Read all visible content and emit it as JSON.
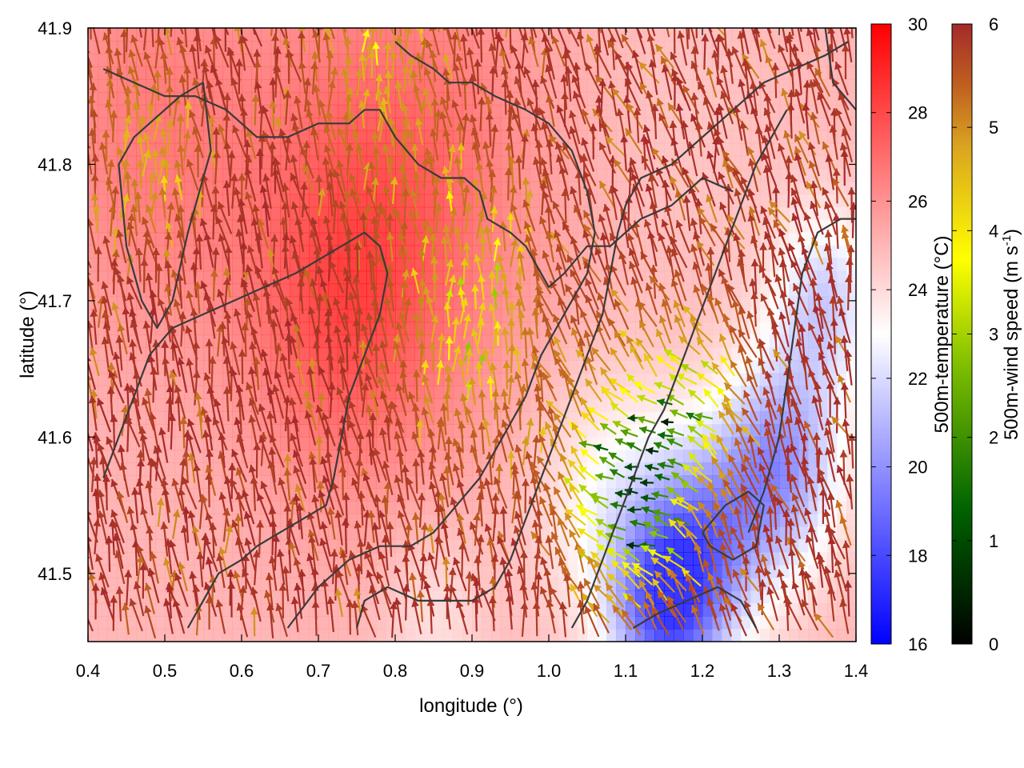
{
  "chart_data": {
    "type": "heatmap",
    "xlabel": "longitude (°)",
    "ylabel": "latitude (°)",
    "xlim": [
      0.4,
      1.4
    ],
    "ylim": [
      41.45,
      41.9
    ],
    "x_ticks": [
      "0.4",
      "0.5",
      "0.6",
      "0.7",
      "0.8",
      "0.9",
      "1.0",
      "1.1",
      "1.2",
      "1.3",
      "1.4"
    ],
    "y_ticks": [
      "41.5",
      "41.6",
      "41.7",
      "41.8",
      "41.9"
    ],
    "grid": false,
    "temperature_colorbar": {
      "label": "500m-temperature (°C)",
      "range": [
        16,
        30
      ],
      "ticks": [
        "16",
        "18",
        "20",
        "22",
        "24",
        "26",
        "28",
        "30"
      ],
      "colors": [
        "#0000ff",
        "#ffffff",
        "#ff0000"
      ]
    },
    "wind_colorbar": {
      "label": "500m-wind speed (m s",
      "label_sup": "-1",
      "label_end": ")",
      "range": [
        0,
        6
      ],
      "ticks": [
        "0",
        "1",
        "2",
        "3",
        "4",
        "5",
        "6"
      ],
      "colors": [
        "#000000",
        "#006400",
        "#7fbf00",
        "#ffff00",
        "#daa520",
        "#c06020",
        "#a52a2a"
      ]
    },
    "temperature_features": [
      {
        "lon": 0.8,
        "lat": 41.78,
        "temp": 28.5,
        "spread": 0.18
      },
      {
        "lon": 0.48,
        "lat": 41.82,
        "temp": 27.5,
        "spread": 0.15
      },
      {
        "lon": 0.72,
        "lat": 41.68,
        "temp": 27.5,
        "spread": 0.12
      },
      {
        "lon": 1.18,
        "lat": 41.82,
        "temp": 25.0,
        "spread": 0.12
      },
      {
        "lon": 1.08,
        "lat": 41.55,
        "temp": 23.0,
        "spread": 0.1
      },
      {
        "lon": 1.2,
        "lat": 41.52,
        "temp": 20.0,
        "spread": 0.08
      },
      {
        "lon": 1.3,
        "lat": 41.58,
        "temp": 19.5,
        "spread": 0.08
      },
      {
        "lon": 1.36,
        "lat": 41.7,
        "temp": 21.5,
        "spread": 0.07
      },
      {
        "lon": 1.15,
        "lat": 41.47,
        "temp": 19.0,
        "spread": 0.07
      },
      {
        "lon": 0.85,
        "lat": 41.47,
        "temp": 24.0,
        "spread": 0.07
      }
    ],
    "background_temperature": 25.5,
    "wind_field": {
      "dominant_direction": "north-north-west",
      "dominant_speed": 6,
      "weak_zones": [
        {
          "lon": 1.12,
          "lat": 41.56,
          "min_speed": 1.0,
          "spread": 0.08
        },
        {
          "lon": 0.9,
          "lat": 41.68,
          "min_speed": 3.5,
          "spread": 0.09
        },
        {
          "lon": 0.78,
          "lat": 41.85,
          "min_speed": 4.0,
          "spread": 0.08
        },
        {
          "lon": 0.48,
          "lat": 41.8,
          "min_speed": 4.0,
          "spread": 0.06
        },
        {
          "lon": 1.2,
          "lat": 41.62,
          "min_speed": 3.5,
          "spread": 0.06
        }
      ]
    },
    "contours": [
      [
        [
          0.42,
          41.87
        ],
        [
          0.46,
          41.86
        ],
        [
          0.5,
          41.85
        ],
        [
          0.54,
          41.85
        ],
        [
          0.58,
          41.84
        ],
        [
          0.62,
          41.82
        ],
        [
          0.66,
          41.82
        ],
        [
          0.7,
          41.83
        ],
        [
          0.74,
          41.83
        ],
        [
          0.76,
          41.84
        ],
        [
          0.78,
          41.84
        ],
        [
          0.8,
          41.82
        ],
        [
          0.83,
          41.8
        ],
        [
          0.86,
          41.79
        ],
        [
          0.89,
          41.79
        ],
        [
          0.91,
          41.78
        ],
        [
          0.92,
          41.76
        ],
        [
          0.95,
          41.75
        ],
        [
          0.97,
          41.74
        ],
        [
          1.0,
          41.71
        ],
        [
          1.02,
          41.72
        ],
        [
          1.05,
          41.74
        ],
        [
          1.08,
          41.74
        ],
        [
          1.12,
          41.76
        ],
        [
          1.16,
          41.77
        ],
        [
          1.2,
          41.79
        ],
        [
          1.24,
          41.78
        ]
      ],
      [
        [
          0.55,
          41.86
        ],
        [
          0.56,
          41.81
        ],
        [
          0.55,
          41.79
        ],
        [
          0.53,
          41.75
        ],
        [
          0.51,
          41.7
        ],
        [
          0.49,
          41.68
        ],
        [
          0.47,
          41.7
        ],
        [
          0.45,
          41.74
        ],
        [
          0.44,
          41.8
        ],
        [
          0.46,
          41.82
        ],
        [
          0.48,
          41.83
        ],
        [
          0.52,
          41.85
        ],
        [
          0.55,
          41.86
        ]
      ],
      [
        [
          0.42,
          41.57
        ],
        [
          0.44,
          41.6
        ],
        [
          0.46,
          41.63
        ],
        [
          0.48,
          41.66
        ],
        [
          0.51,
          41.68
        ],
        [
          0.55,
          41.69
        ],
        [
          0.59,
          41.7
        ],
        [
          0.63,
          41.71
        ],
        [
          0.67,
          41.72
        ],
        [
          0.7,
          41.73
        ],
        [
          0.73,
          41.74
        ],
        [
          0.76,
          41.75
        ],
        [
          0.78,
          41.74
        ],
        [
          0.79,
          41.72
        ],
        [
          0.78,
          41.69
        ],
        [
          0.76,
          41.66
        ],
        [
          0.74,
          41.63
        ],
        [
          0.73,
          41.6
        ],
        [
          0.72,
          41.57
        ],
        [
          0.71,
          41.55
        ],
        [
          0.68,
          41.54
        ],
        [
          0.65,
          41.53
        ],
        [
          0.62,
          41.52
        ],
        [
          0.6,
          41.51
        ],
        [
          0.57,
          41.5
        ],
        [
          0.55,
          41.48
        ],
        [
          0.53,
          41.46
        ]
      ],
      [
        [
          0.66,
          41.46
        ],
        [
          0.7,
          41.49
        ],
        [
          0.74,
          41.51
        ],
        [
          0.78,
          41.52
        ],
        [
          0.82,
          41.52
        ],
        [
          0.85,
          41.53
        ],
        [
          0.88,
          41.55
        ],
        [
          0.91,
          41.57
        ],
        [
          0.93,
          41.59
        ],
        [
          0.95,
          41.61
        ],
        [
          0.97,
          41.63
        ],
        [
          0.99,
          41.66
        ],
        [
          1.01,
          41.68
        ],
        [
          1.03,
          41.7
        ],
        [
          1.05,
          41.72
        ],
        [
          1.06,
          41.75
        ],
        [
          1.05,
          41.78
        ],
        [
          1.03,
          41.81
        ],
        [
          1.0,
          41.83
        ],
        [
          0.97,
          41.84
        ],
        [
          0.93,
          41.85
        ],
        [
          0.9,
          41.86
        ],
        [
          0.87,
          41.86
        ],
        [
          0.85,
          41.87
        ],
        [
          0.82,
          41.88
        ],
        [
          0.8,
          41.89
        ]
      ],
      [
        [
          0.75,
          41.46
        ],
        [
          0.76,
          41.48
        ],
        [
          0.79,
          41.49
        ],
        [
          0.83,
          41.48
        ],
        [
          0.87,
          41.48
        ],
        [
          0.9,
          41.48
        ],
        [
          0.93,
          41.49
        ],
        [
          0.95,
          41.51
        ],
        [
          0.97,
          41.54
        ],
        [
          0.99,
          41.57
        ],
        [
          1.01,
          41.6
        ],
        [
          1.03,
          41.63
        ],
        [
          1.05,
          41.66
        ],
        [
          1.07,
          41.69
        ],
        [
          1.08,
          41.72
        ],
        [
          1.09,
          41.75
        ],
        [
          1.1,
          41.77
        ],
        [
          1.12,
          41.79
        ],
        [
          1.16,
          41.8
        ],
        [
          1.2,
          41.82
        ],
        [
          1.24,
          41.84
        ],
        [
          1.28,
          41.86
        ],
        [
          1.32,
          41.87
        ],
        [
          1.36,
          41.88
        ],
        [
          1.39,
          41.89
        ]
      ],
      [
        [
          1.03,
          41.46
        ],
        [
          1.05,
          41.48
        ],
        [
          1.07,
          41.51
        ],
        [
          1.09,
          41.54
        ],
        [
          1.11,
          41.57
        ],
        [
          1.13,
          41.6
        ],
        [
          1.15,
          41.62
        ],
        [
          1.17,
          41.65
        ],
        [
          1.19,
          41.68
        ],
        [
          1.21,
          41.71
        ],
        [
          1.23,
          41.74
        ],
        [
          1.25,
          41.77
        ],
        [
          1.27,
          41.8
        ],
        [
          1.29,
          41.82
        ],
        [
          1.31,
          41.84
        ]
      ],
      [
        [
          1.11,
          41.46
        ],
        [
          1.14,
          41.47
        ],
        [
          1.18,
          41.48
        ],
        [
          1.22,
          41.49
        ],
        [
          1.25,
          41.48
        ],
        [
          1.27,
          41.46
        ]
      ],
      [
        [
          1.2,
          41.53
        ],
        [
          1.23,
          41.55
        ],
        [
          1.26,
          41.56
        ],
        [
          1.28,
          41.55
        ],
        [
          1.27,
          41.52
        ],
        [
          1.24,
          41.51
        ],
        [
          1.21,
          41.52
        ],
        [
          1.2,
          41.53
        ]
      ],
      [
        [
          1.26,
          41.53
        ],
        [
          1.28,
          41.56
        ],
        [
          1.3,
          41.6
        ],
        [
          1.31,
          41.64
        ],
        [
          1.32,
          41.68
        ],
        [
          1.33,
          41.72
        ],
        [
          1.35,
          41.75
        ],
        [
          1.38,
          41.76
        ],
        [
          1.4,
          41.76
        ]
      ],
      [
        [
          1.36,
          41.9
        ],
        [
          1.37,
          41.86
        ],
        [
          1.4,
          41.84
        ]
      ]
    ]
  }
}
